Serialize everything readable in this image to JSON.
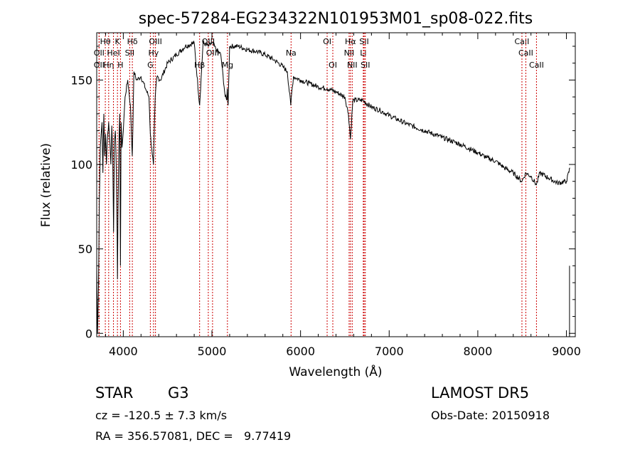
{
  "title": "spec-57284-EG234322N101953M01_sp08-022.fits",
  "info": {
    "class": "STAR",
    "subclass": "G3",
    "survey": "LAMOST DR5",
    "cz": "cz = -120.5 ± 7.3 km/s",
    "obs_date": "Obs-Date: 20150918",
    "radec": "RA = 356.57081, DEC =   9.77419"
  },
  "chart_data": {
    "type": "line",
    "title": "spec-57284-EG234322N101953M01_sp08-022.fits",
    "xlabel": "Wavelength (Å)",
    "ylabel": "Flux (relative)",
    "xlim": [
      3700,
      9100
    ],
    "ylim": [
      -2,
      178
    ],
    "xticks": [
      4000,
      5000,
      6000,
      7000,
      8000,
      9000
    ],
    "yticks": [
      0,
      50,
      100,
      150
    ],
    "series": [
      {
        "x": [
          3700,
          3710,
          3720,
          3730,
          3740,
          3750,
          3760,
          3770,
          3780,
          3790,
          3800,
          3810,
          3820,
          3835,
          3850,
          3860,
          3870,
          3880,
          3890,
          3900,
          3910,
          3920,
          3930,
          3934,
          3940,
          3950,
          3960,
          3968,
          3975,
          3985,
          4000,
          4020,
          4050,
          4080,
          4101,
          4120,
          4150,
          4200,
          4250,
          4290,
          4305,
          4320,
          4340,
          4360,
          4380,
          4420,
          4500,
          4600,
          4700,
          4800,
          4861,
          4900,
          4960,
          5000,
          5050,
          5100,
          5150,
          5167,
          5173,
          5183,
          5200,
          5300,
          5400,
          5500,
          5600,
          5700,
          5800,
          5850,
          5890,
          5896,
          5920,
          6000,
          6100,
          6200,
          6300,
          6400,
          6500,
          6540,
          6563,
          6590,
          6700,
          6800,
          6900,
          7000,
          7200,
          7400,
          7600,
          7800,
          8000,
          8100,
          8200,
          8300,
          8400,
          8498,
          8542,
          8600,
          8662,
          8700,
          8800,
          8900,
          9000,
          9040
        ],
        "y": [
          40,
          0,
          28,
          78,
          110,
          118,
          125,
          95,
          130,
          105,
          118,
          100,
          115,
          125,
          112,
          100,
          123,
          108,
          60,
          115,
          120,
          100,
          60,
          32,
          70,
          112,
          130,
          40,
          125,
          110,
          120,
          140,
          150,
          135,
          105,
          155,
          150,
          152,
          145,
          140,
          118,
          110,
          100,
          140,
          152,
          150,
          160,
          165,
          170,
          172,
          135,
          172,
          170,
          172,
          168,
          165,
          140,
          138,
          145,
          135,
          170,
          170,
          168,
          167,
          165,
          162,
          158,
          155,
          135,
          140,
          152,
          150,
          148,
          146,
          145,
          143,
          140,
          130,
          115,
          138,
          138,
          134,
          132,
          129,
          124,
          120,
          116,
          112,
          107,
          104,
          102,
          98,
          95,
          90,
          95,
          93,
          88,
          95,
          92,
          89,
          90,
          98
        ]
      }
    ],
    "lines": [
      {
        "label": "OII",
        "wl": 3727,
        "row": 3
      },
      {
        "label": "Hθ",
        "wl": 3797,
        "row": 1
      },
      {
        "label": "OII",
        "wl": 3727,
        "row": 2
      },
      {
        "label": "Hη",
        "wl": 3835,
        "row": 3
      },
      {
        "label": "HeI",
        "wl": 3889,
        "row": 2
      },
      {
        "label": "K",
        "wl": 3934,
        "row": 1
      },
      {
        "label": "H",
        "wl": 3968,
        "row": 3
      },
      {
        "label": "SII",
        "wl": 4072,
        "row": 2
      },
      {
        "label": "Hδ",
        "wl": 4102,
        "row": 1
      },
      {
        "label": "G",
        "wl": 4305,
        "row": 3
      },
      {
        "label": "Hγ",
        "wl": 4341,
        "row": 2
      },
      {
        "label": "OIII",
        "wl": 4363,
        "row": 1
      },
      {
        "label": "Hβ",
        "wl": 4861,
        "row": 3
      },
      {
        "label": "OIII",
        "wl": 4959,
        "row": 1
      },
      {
        "label": "OIII",
        "wl": 5007,
        "row": 2
      },
      {
        "label": "Mg",
        "wl": 5175,
        "row": 3
      },
      {
        "label": "Na",
        "wl": 5893,
        "row": 2
      },
      {
        "label": "OI",
        "wl": 6300,
        "row": 1
      },
      {
        "label": "OI",
        "wl": 6364,
        "row": 3
      },
      {
        "label": "NII",
        "wl": 6548,
        "row": 2
      },
      {
        "label": "Hα",
        "wl": 6563,
        "row": 1
      },
      {
        "label": "NII",
        "wl": 6583,
        "row": 3
      },
      {
        "label": "Li",
        "wl": 6708,
        "row": 2
      },
      {
        "label": "SII",
        "wl": 6717,
        "row": 1
      },
      {
        "label": "SII",
        "wl": 6731,
        "row": 3
      },
      {
        "label": "CaII",
        "wl": 8498,
        "row": 1
      },
      {
        "label": "CaII",
        "wl": 8542,
        "row": 2
      },
      {
        "label": "CaII",
        "wl": 8662,
        "row": 3
      }
    ],
    "grid": false,
    "legend": "none",
    "colors": {
      "spectrum": "#000000",
      "line_marker": "#cc0000"
    }
  }
}
